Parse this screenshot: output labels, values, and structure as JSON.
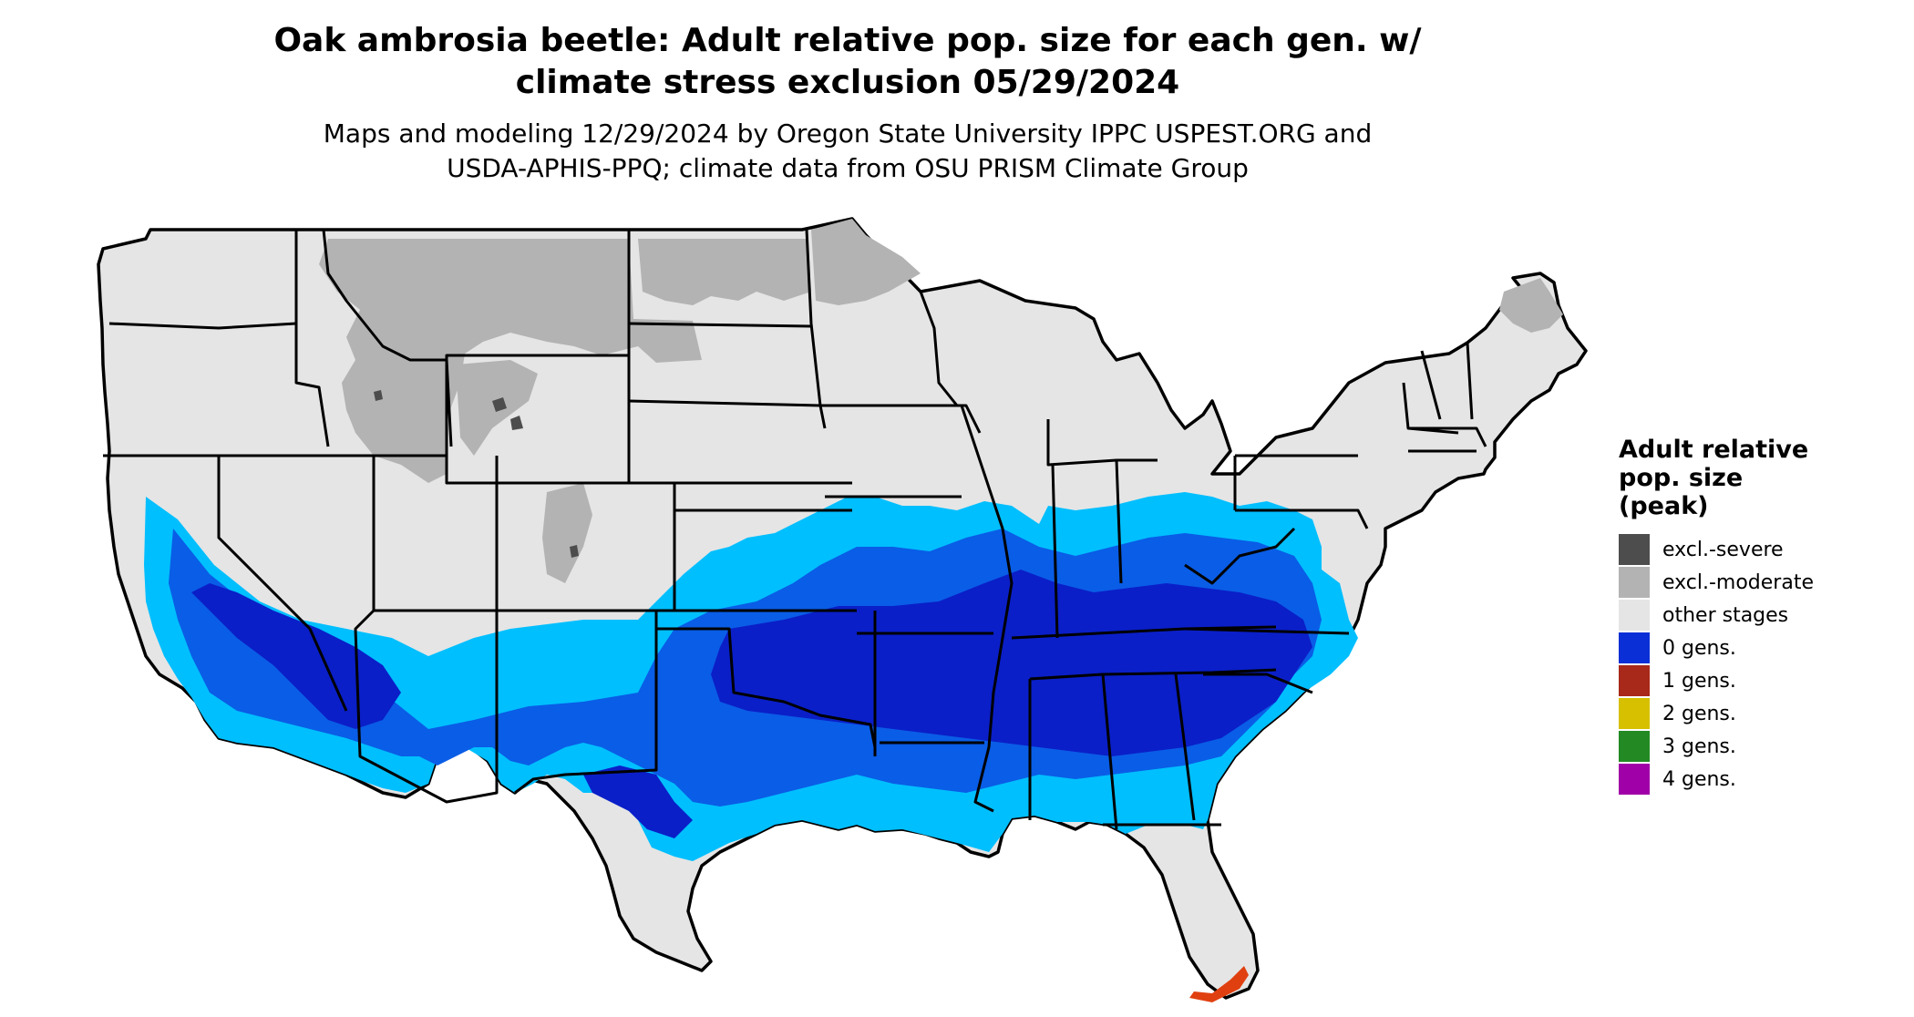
{
  "title_line1": "Oak ambrosia beetle: Adult relative pop. size for each gen. w/",
  "title_line2": "climate stress exclusion 05/29/2024",
  "subtitle_line1": "Maps and modeling 12/29/2024 by Oregon State University IPPC USPEST.ORG and",
  "subtitle_line2": "USDA-APHIS-PPQ; climate data from OSU PRISM Climate Group",
  "legend": {
    "title_line1": "Adult relative",
    "title_line2": "pop. size",
    "title_line3": "(peak)",
    "items": [
      {
        "label": "excl.-severe",
        "color": "#4d4d4d"
      },
      {
        "label": "excl.-moderate",
        "color": "#b3b3b3"
      },
      {
        "label": "other stages",
        "color": "#e5e5e5"
      },
      {
        "label": "0 gens.",
        "color": "#0a2fd6"
      },
      {
        "label": "1 gens.",
        "color": "#a8281a"
      },
      {
        "label": "2 gens.",
        "color": "#d6c000"
      },
      {
        "label": "3 gens.",
        "color": "#238a23"
      },
      {
        "label": "4 gens.",
        "color": "#a000a8"
      }
    ]
  },
  "map_colors": {
    "land": "#e5e5e5",
    "excl_moderate": "#b3b3b3",
    "excl_severe": "#4d4d4d",
    "light_blue": "#00bfff",
    "mid_blue": "#0a5de6",
    "dark_blue": "#0a1fc8",
    "one_gen": "#e04010",
    "border": "#000000"
  }
}
